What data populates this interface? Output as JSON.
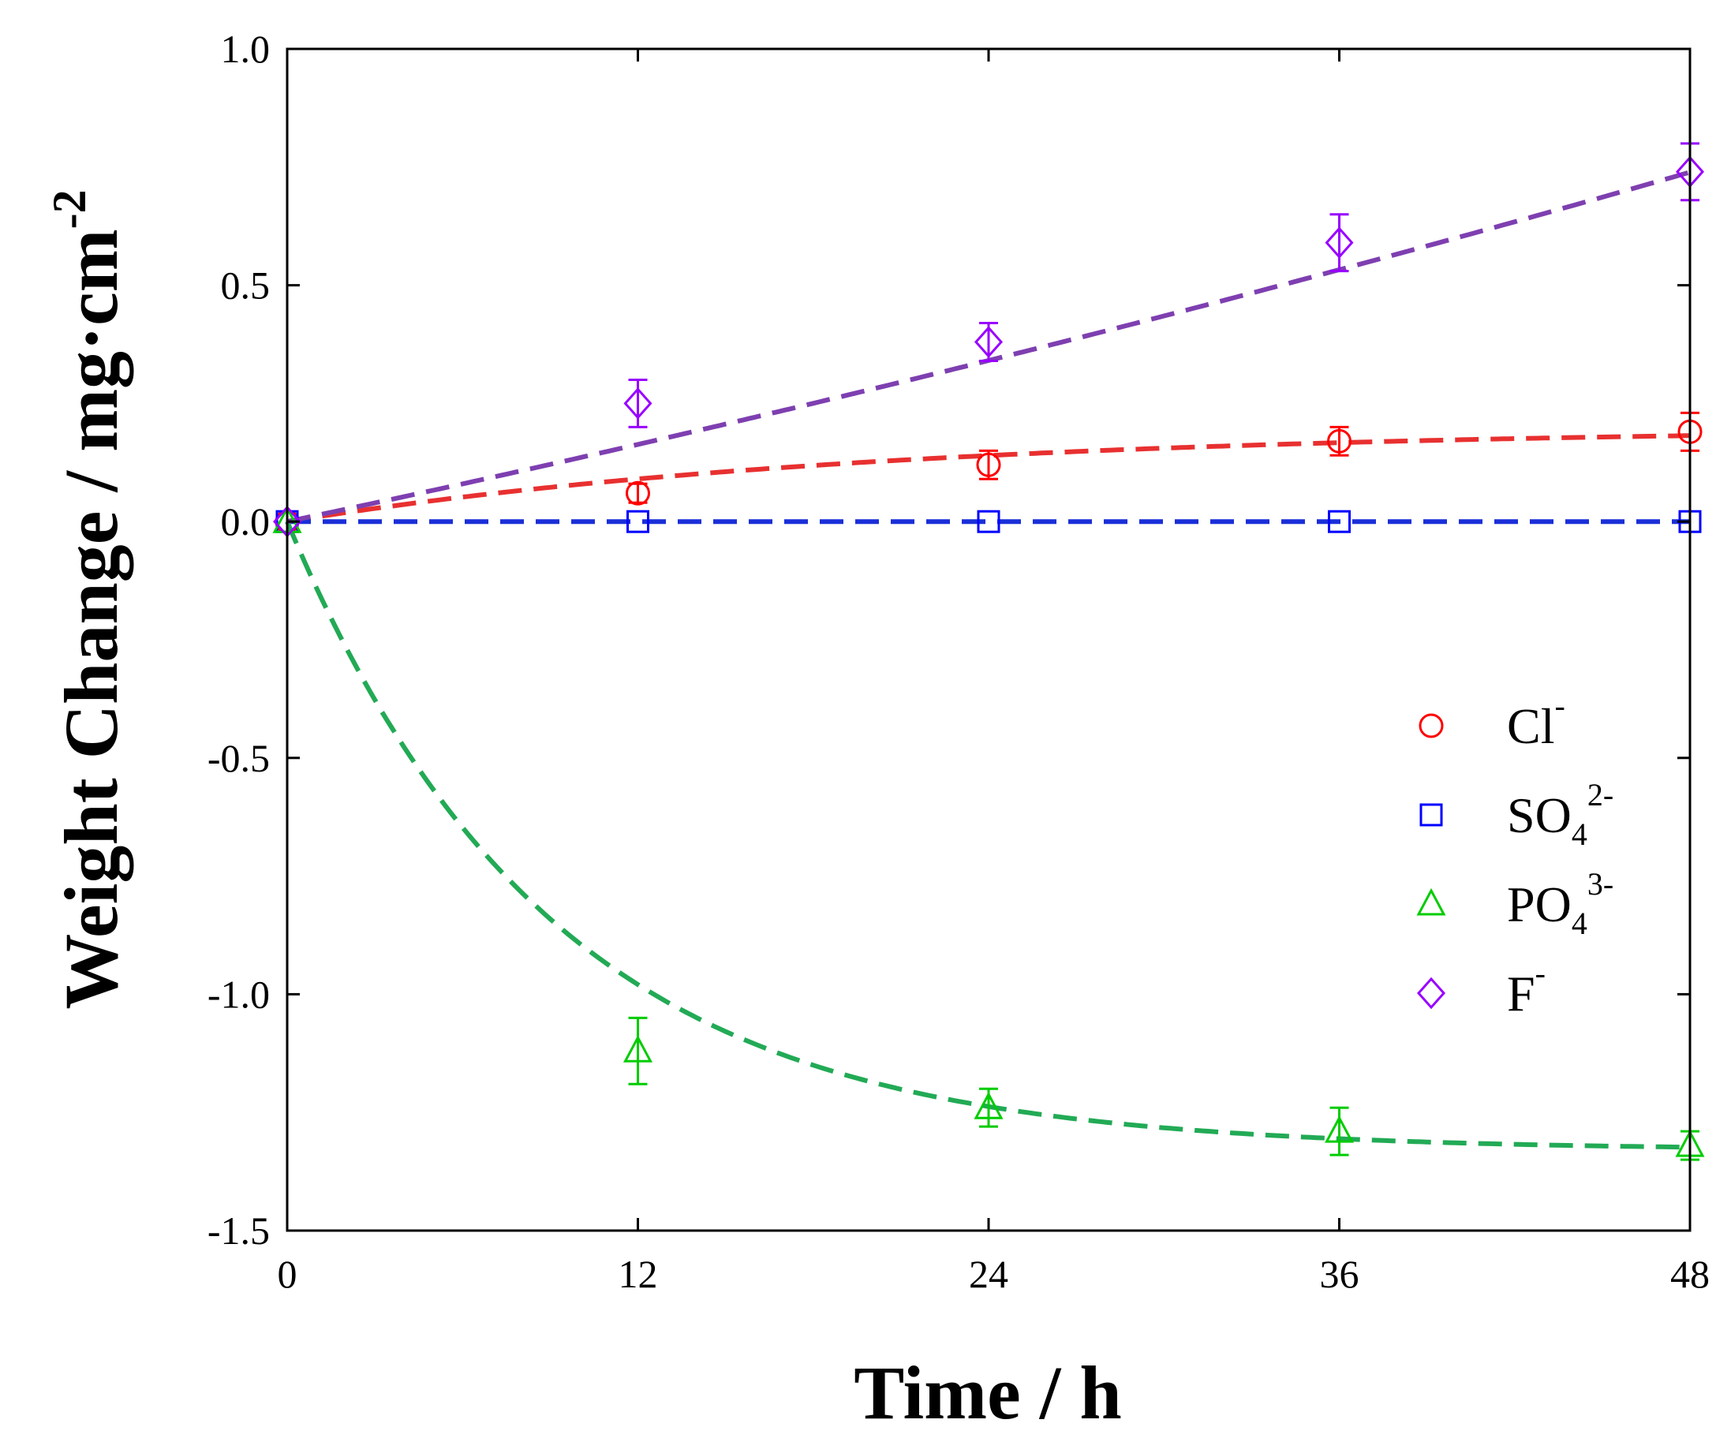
{
  "chart_data": {
    "type": "line",
    "title": "",
    "xlabel": "Time / h",
    "ylabel": {
      "main": "Weight Change / mg·cm",
      "sup": "-2"
    },
    "xlim": [
      0,
      48
    ],
    "ylim": [
      -1.5,
      1.0
    ],
    "x_ticks": [
      0,
      12,
      24,
      36,
      48
    ],
    "x_tick_labels": [
      "0",
      "12",
      "24",
      "36",
      "48"
    ],
    "y_ticks": [
      1.0,
      0.5,
      0.0,
      -0.5,
      -1.0,
      -1.5
    ],
    "y_tick_labels": [
      "1.0",
      "0.5",
      "0.0",
      "-0.5",
      "-1.0",
      "-1.5"
    ],
    "grid": false,
    "legend_position": "right-middle",
    "series": [
      {
        "name": "Cl-",
        "label_base": "Cl",
        "label_sub": "",
        "label_sup": "-",
        "marker": "circle",
        "marker_color": "#ff0000",
        "fit_color": "#e83030",
        "x": [
          0,
          12,
          24,
          36,
          48
        ],
        "values": [
          0.0,
          0.06,
          0.12,
          0.17,
          0.19
        ],
        "errors": [
          0.0,
          0.02,
          0.03,
          0.03,
          0.04
        ],
        "fit": {
          "model": "exp_rise",
          "A": 0.2,
          "tau": 20
        }
      },
      {
        "name": "SO42-",
        "label_base": "SO",
        "label_sub": "4",
        "label_sup": "2-",
        "marker": "square",
        "marker_color": "#0000ff",
        "fit_color": "#1a2fd8",
        "x": [
          0,
          12,
          24,
          36,
          48
        ],
        "values": [
          0.0,
          0.0,
          0.0,
          0.0,
          0.0
        ],
        "errors": [
          0.0,
          0.0,
          0.0,
          0.0,
          0.0
        ],
        "fit": {
          "model": "linear",
          "slope": 0.0,
          "intercept": 0.0
        }
      },
      {
        "name": "PO43-",
        "label_base": "PO",
        "label_sub": "4",
        "label_sup": "3-",
        "marker": "triangle",
        "marker_color": "#00cc00",
        "fit_color": "#22aa55",
        "x": [
          0,
          12,
          24,
          36,
          48
        ],
        "values": [
          0.0,
          -1.12,
          -1.24,
          -1.29,
          -1.32
        ],
        "errors": [
          0.0,
          0.07,
          0.04,
          0.05,
          0.03
        ],
        "fit": {
          "model": "exp_decay",
          "A": 1.33,
          "tau": 9.0
        }
      },
      {
        "name": "F-",
        "label_base": "F",
        "label_sub": "",
        "label_sup": "-",
        "marker": "diamond",
        "marker_color": "#9900ff",
        "fit_color": "#7e3fb0",
        "x": [
          0,
          12,
          24,
          36,
          48
        ],
        "values": [
          0.0,
          0.25,
          0.38,
          0.59,
          0.74
        ],
        "errors": [
          0.0,
          0.05,
          0.04,
          0.06,
          0.06
        ],
        "fit": {
          "model": "quadratic",
          "a": 5e-05,
          "b": 0.013
        }
      }
    ]
  }
}
